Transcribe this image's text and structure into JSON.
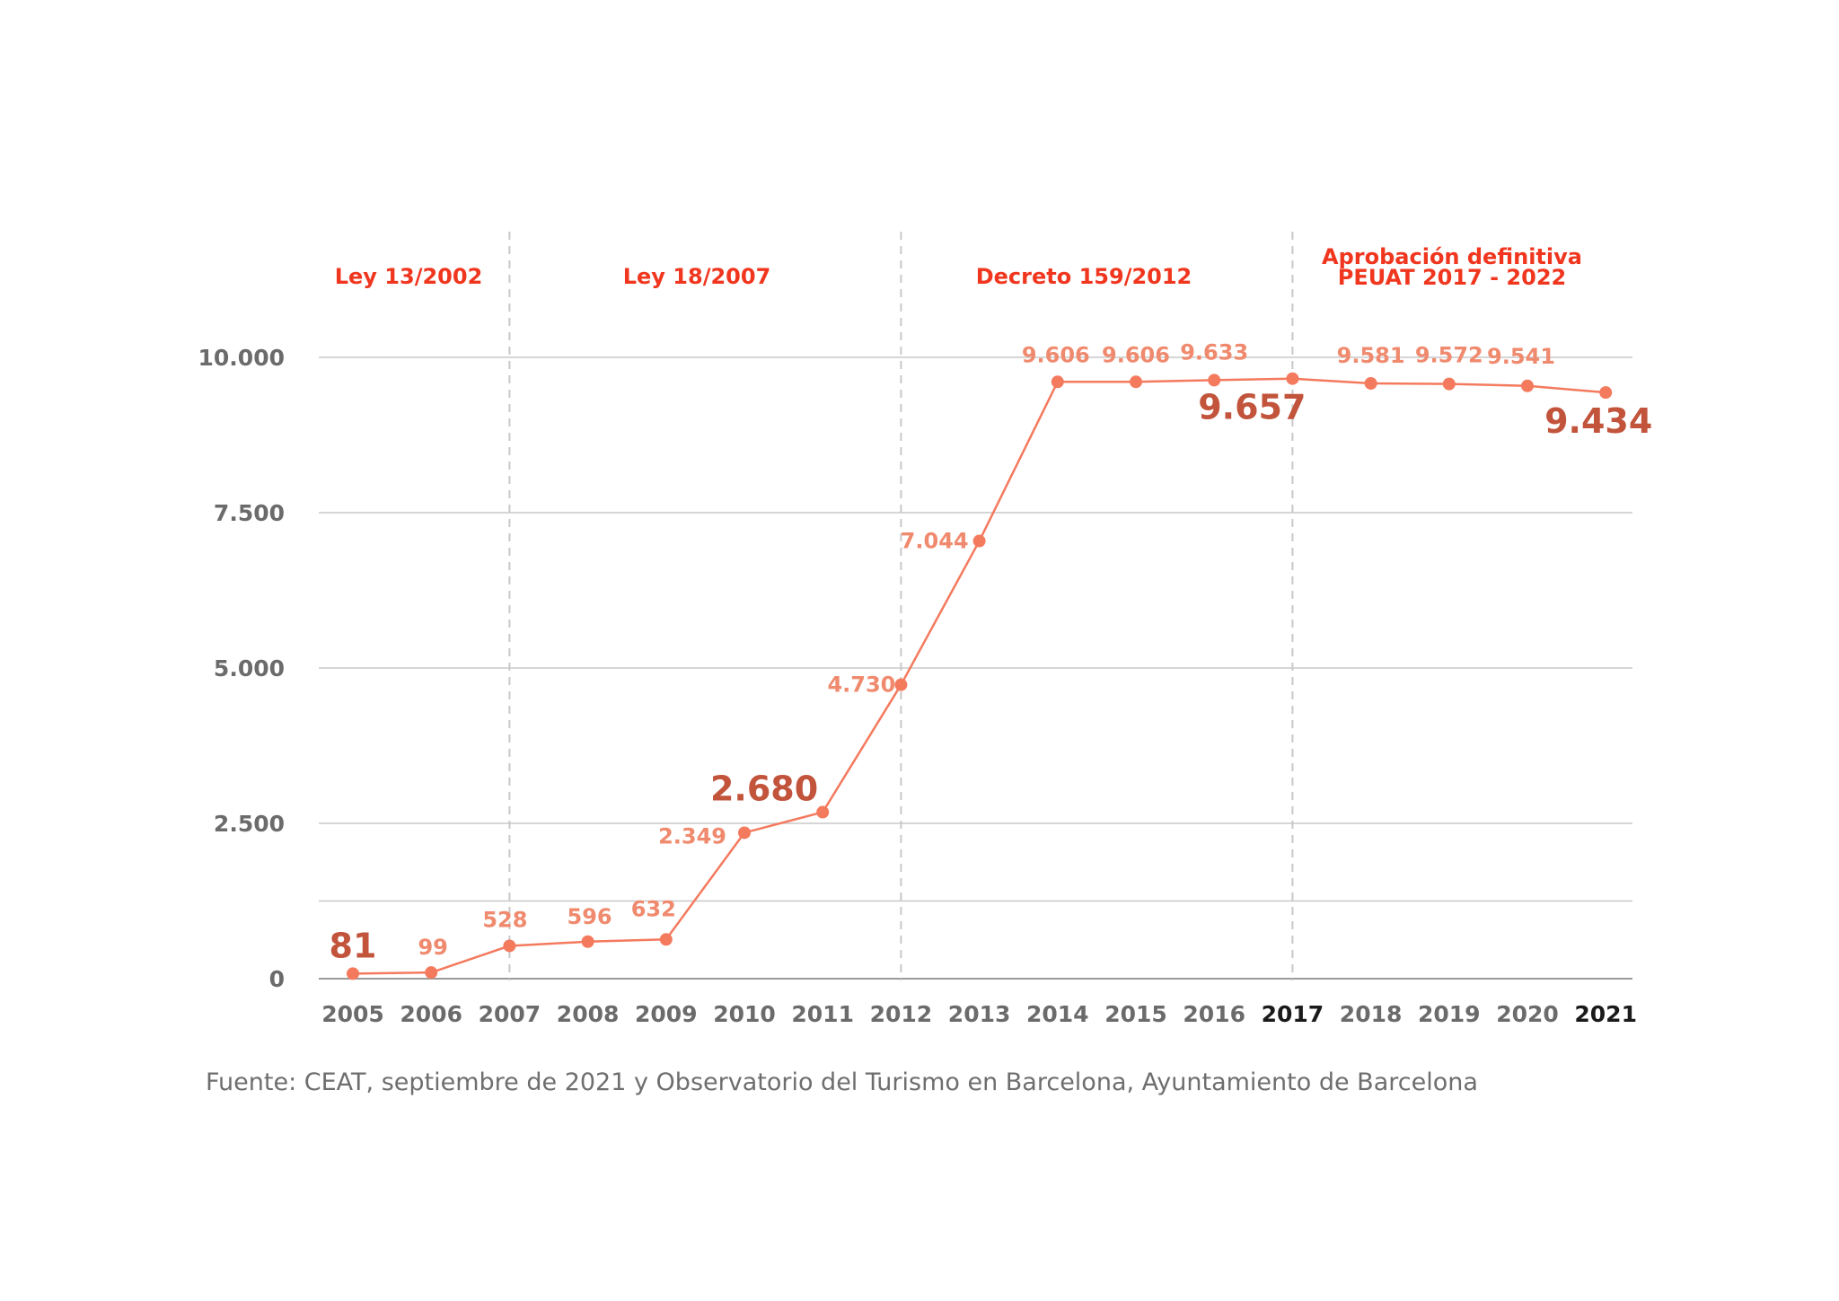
{
  "colors": {
    "line": "#f47a5e",
    "point": "#f47a5e",
    "label": "#f08a6e",
    "label_highlight": "#c2543c",
    "period": "#f0361e",
    "grid": "#c8c8c8",
    "divider": "#c8c8c8",
    "axis_text": "#6b6b6b",
    "axis_text_highlight": "#1a1a1a"
  },
  "chart_data": {
    "type": "line",
    "x": [
      "2005",
      "2006",
      "2007",
      "2008",
      "2009",
      "2010",
      "2011",
      "2012",
      "2013",
      "2014",
      "2015",
      "2016",
      "2017",
      "2018",
      "2019",
      "2020",
      "2021"
    ],
    "series": [
      {
        "values": [
          81,
          99,
          528,
          596,
          632,
          2349,
          2680,
          4730,
          7044,
          9606,
          9606,
          9633,
          9657,
          9581,
          9572,
          9541,
          9434
        ],
        "labels": [
          "81",
          "99",
          "528",
          "596",
          "632",
          "2.349",
          "2.680",
          "4.730",
          "7.044",
          "9.606",
          "9.606",
          "9.633",
          "9.657",
          "9.581",
          "9.572",
          "9.541",
          "9.434"
        ]
      }
    ],
    "highlighted_values": [
      "2005",
      "2011",
      "2017",
      "2021"
    ],
    "highlighted_x_ticks": [
      "2017",
      "2021"
    ],
    "ylim": [
      0,
      10000
    ],
    "yticks": [
      0,
      2500,
      5000,
      7500,
      10000
    ],
    "ytick_labels": [
      "0",
      "2.500",
      "5.000",
      "7.500",
      "10.000"
    ],
    "gridlines": [
      1250,
      2500,
      5000,
      7500,
      10000
    ],
    "grid": true,
    "period_dividers": [
      "2007",
      "2012",
      "2017"
    ],
    "periods": [
      {
        "label": "Ley 13/2002",
        "from": "2005",
        "to": "2007"
      },
      {
        "label": "Ley 18/2007",
        "from": "2007",
        "to": "2012"
      },
      {
        "label": "Decreto 159/2012",
        "from": "2012",
        "to": "2017"
      },
      {
        "label": "Aprobación definitiva",
        "label2": "PEUAT 2017 - 2022",
        "from": "2017",
        "to": "2021"
      }
    ],
    "xlabel": "",
    "ylabel": "",
    "title": ""
  },
  "source": "Fuente: CEAT, septiembre de 2021 y Observatorio del Turismo en Barcelona, Ayuntamiento de Barcelona"
}
